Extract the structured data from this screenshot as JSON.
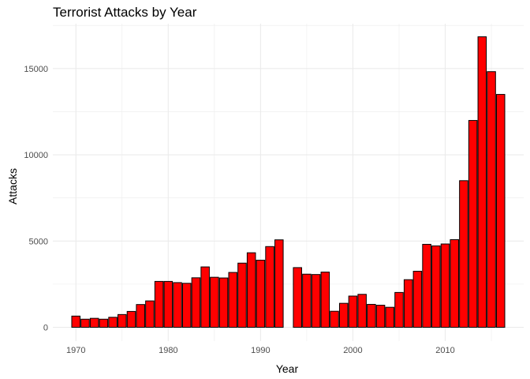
{
  "chart_data": {
    "type": "bar",
    "title": "Terrorist Attacks by Year",
    "xlabel": "Year",
    "ylabel": "Attacks",
    "xlim": [
      1967.5,
      2018.5
    ],
    "ylim": [
      -800,
      17600
    ],
    "x_ticks": [
      1970,
      1980,
      1990,
      2000,
      2010
    ],
    "y_ticks": [
      0,
      5000,
      10000,
      15000
    ],
    "y_tick_labels": [
      "0",
      "5000",
      "10000",
      "15000"
    ],
    "x_tick_labels": [
      "1970",
      "1980",
      "1990",
      "2000",
      "2010"
    ],
    "grid": true,
    "bar_fill": "#ff0000",
    "bar_stroke": "#000000",
    "grid_color": "#ebebeb",
    "x": [
      1970,
      1971,
      1972,
      1973,
      1974,
      1975,
      1976,
      1977,
      1978,
      1979,
      1980,
      1981,
      1982,
      1983,
      1984,
      1985,
      1986,
      1987,
      1988,
      1989,
      1990,
      1991,
      1992,
      1994,
      1995,
      1996,
      1997,
      1998,
      1999,
      2000,
      2001,
      2002,
      2003,
      2004,
      2005,
      2006,
      2007,
      2008,
      2009,
      2010,
      2011,
      2012,
      2013,
      2014,
      2015,
      2016
    ],
    "values": [
      650,
      470,
      520,
      470,
      580,
      740,
      920,
      1320,
      1530,
      2660,
      2660,
      2590,
      2550,
      2870,
      3500,
      2900,
      2860,
      3180,
      3720,
      4320,
      3890,
      4680,
      5070,
      3460,
      3080,
      3060,
      3200,
      930,
      1390,
      1810,
      1910,
      1330,
      1280,
      1160,
      2020,
      2760,
      3250,
      4810,
      4720,
      4830,
      5080,
      8500,
      11990,
      16840,
      14820,
      13500
    ]
  }
}
